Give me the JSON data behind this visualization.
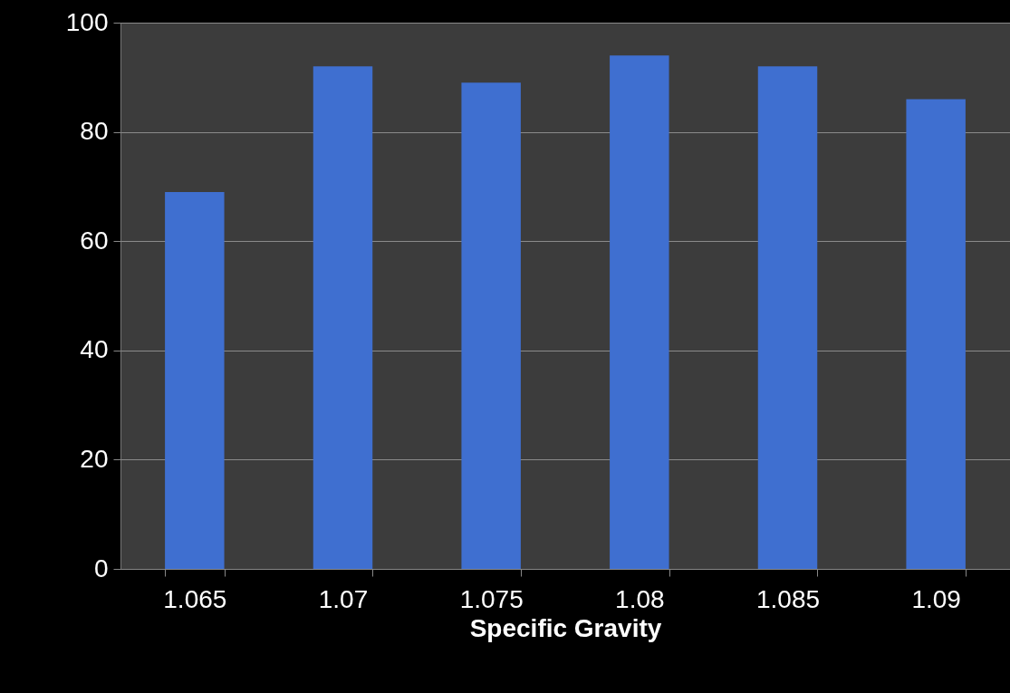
{
  "chart_data": {
    "type": "bar",
    "xlabel": "Specific Gravity",
    "categories": [
      "1.065",
      "1.07",
      "1.075",
      "1.08",
      "1.085",
      "1.09"
    ],
    "values": [
      69,
      92,
      89,
      94,
      92,
      86
    ],
    "color": "#3f6fd0",
    "ylim": [
      0,
      100
    ],
    "yticks": [
      0,
      20,
      40,
      60,
      80,
      100
    ],
    "grid": "y"
  }
}
